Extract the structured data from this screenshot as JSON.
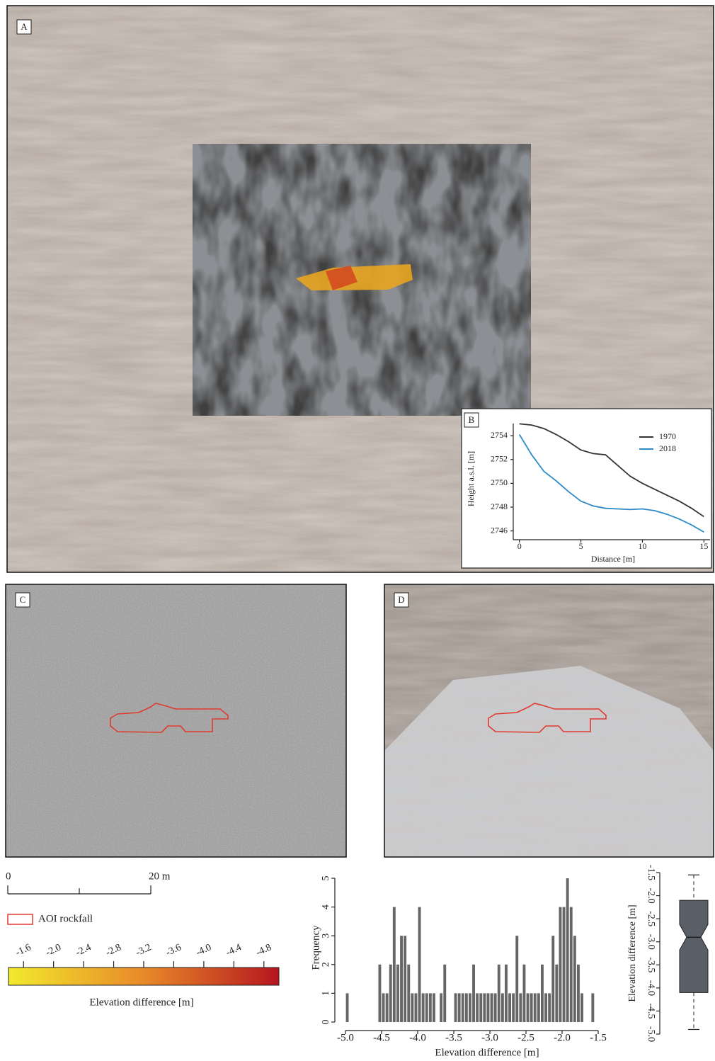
{
  "panel_labels": [
    "A",
    "B",
    "C",
    "D"
  ],
  "scale_bar": {
    "ticks": [
      0,
      {
        "value": 20,
        "label": "20 m"
      }
    ]
  },
  "legend": {
    "label": "AOI rockfall",
    "color": "#e03a30"
  },
  "chart_data": [
    {
      "type": "line",
      "xlabel": "Distance [m]",
      "ylabel": "Height a.s.l. [m]",
      "x": [
        0,
        1,
        2,
        3,
        4,
        5,
        6,
        7,
        8,
        9,
        10,
        11,
        12,
        13,
        14,
        15
      ],
      "series": [
        {
          "name": "1970",
          "color": "#333333",
          "values": [
            2755.0,
            2754.9,
            2754.6,
            2754.1,
            2753.5,
            2752.8,
            2752.5,
            2752.4,
            2751.5,
            2750.6,
            2750.0,
            2749.5,
            2749.0,
            2748.5,
            2747.9,
            2747.2
          ]
        },
        {
          "name": "2018",
          "color": "#2e8bc8",
          "values": [
            2754.1,
            2752.4,
            2751.0,
            2750.2,
            2749.3,
            2748.5,
            2748.1,
            2747.9,
            2747.85,
            2747.8,
            2747.85,
            2747.7,
            2747.4,
            2747.0,
            2746.5,
            2745.9
          ]
        }
      ],
      "xlim": [
        -0.5,
        15.5
      ],
      "xticks": [
        0,
        5,
        10,
        15
      ],
      "ylim": [
        2745.5,
        2755.5
      ],
      "yticks": [
        2746,
        2748,
        2750,
        2752,
        2754
      ]
    },
    {
      "type": "colorbar",
      "label": "Elevation difference [m]",
      "colors": [
        "#f2ea2c",
        "#e8892a",
        "#b5161f"
      ],
      "xlim": [
        -1.4,
        -5.0
      ],
      "xticks": [
        -1.6,
        {
          "value": -2.0,
          "label": "-2.0"
        },
        -2.4,
        -2.8,
        -3.2,
        -3.6,
        {
          "value": -4.0,
          "label": "-4.0"
        },
        -4.4,
        -4.8
      ]
    },
    {
      "type": "histogram",
      "xlabel": "Elevation difference [m]",
      "ylabel": "Frequency",
      "color": "#666666",
      "bins": [
        -5.0,
        -4.95,
        -4.9,
        -4.85,
        -4.8,
        -4.75,
        -4.7,
        -4.65,
        -4.6,
        -4.55,
        -4.5,
        -4.45,
        -4.4,
        -4.35,
        -4.3,
        -4.25,
        -4.2,
        -4.15,
        -4.1,
        -4.05,
        -4.0,
        -3.95,
        -3.9,
        -3.85,
        -3.8,
        -3.75,
        -3.7,
        -3.65,
        -3.6,
        -3.55,
        -3.5,
        -3.45,
        -3.4,
        -3.35,
        -3.3,
        -3.25,
        -3.2,
        -3.15,
        -3.1,
        -3.05,
        -3.0,
        -2.95,
        -2.9,
        -2.85,
        -2.8,
        -2.75,
        -2.7,
        -2.65,
        -2.6,
        -2.55,
        -2.5,
        -2.45,
        -2.4,
        -2.35,
        -2.3,
        -2.25,
        -2.2,
        -2.15,
        -2.1,
        -2.05,
        -2.0,
        -1.95,
        -1.9,
        -1.85,
        -1.8,
        -1.75,
        -1.7,
        -1.65,
        -1.6,
        -1.55,
        -1.5
      ],
      "values": [
        1,
        0,
        0,
        0,
        0,
        0,
        0,
        0,
        0,
        2,
        1,
        1,
        2,
        4,
        2,
        3,
        3,
        2,
        1,
        1,
        4,
        1,
        1,
        1,
        1,
        0,
        1,
        2,
        0,
        0,
        1,
        1,
        1,
        1,
        1,
        2,
        1,
        1,
        1,
        1,
        1,
        1,
        2,
        1,
        2,
        1,
        1,
        3,
        1,
        2,
        1,
        1,
        1,
        1,
        2,
        1,
        1,
        3,
        2,
        4,
        4,
        5,
        4,
        3,
        2,
        1,
        0,
        0,
        1,
        0
      ],
      "xlim": [
        -5.0,
        -1.5
      ],
      "xticks": [
        {
          "value": -5.0,
          "label": "-5.0"
        },
        -4.5,
        {
          "value": -4.0,
          "label": "-4.0"
        },
        -3.5,
        {
          "value": -3.0,
          "label": "-3.0"
        },
        -2.5,
        {
          "value": -2.0,
          "label": "-2.0"
        },
        -1.5
      ],
      "ylim": [
        0,
        5
      ],
      "yticks": [
        0,
        1,
        2,
        3,
        4,
        5
      ]
    },
    {
      "type": "box",
      "ylabel": "Elevation difference [m]",
      "color": "#5a5e66",
      "values": {
        "min": -4.9,
        "q1": -4.1,
        "median": -2.9,
        "q3": -2.1,
        "max": -1.55
      },
      "ylim": [
        -5.0,
        -1.5
      ],
      "yticks": [
        -1.5,
        {
          "value": -2.0,
          "label": "-2.0"
        },
        -2.5,
        {
          "value": -3.0,
          "label": "-3.0"
        },
        -3.5,
        {
          "value": -4.0,
          "label": "-4.0"
        },
        -4.5,
        {
          "value": -5.0,
          "label": "-5.0"
        }
      ]
    }
  ]
}
